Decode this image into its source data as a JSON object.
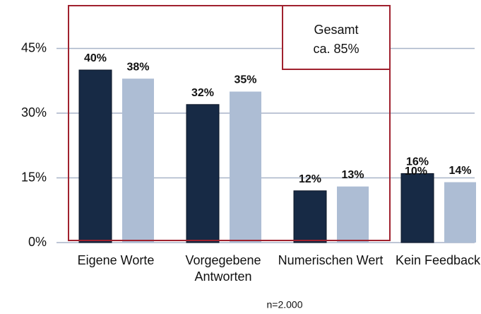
{
  "chart_data": {
    "type": "bar",
    "categories": [
      "Eigene Worte",
      "Vorgegebene Antworten",
      "Numerischen Wert",
      "Kein Feedback"
    ],
    "series": [
      {
        "color": "#172a45",
        "values": [
          40,
          32,
          12,
          16
        ],
        "value_labels": [
          "40%",
          "32%",
          "12%",
          "16%"
        ]
      },
      {
        "color": "#adbdd4",
        "values": [
          38,
          35,
          13,
          14
        ],
        "value_labels": [
          "38%",
          "35%",
          "13%",
          "14%"
        ]
      }
    ],
    "ylim": [
      0,
      55
    ],
    "yticks": [
      {
        "value": 0,
        "label": "0%"
      },
      {
        "value": 15,
        "label": "15%"
      },
      {
        "value": 30,
        "label": "30%"
      },
      {
        "value": 45,
        "label": "45%"
      }
    ],
    "grid": true,
    "annotations": {
      "box_title": "Gesamt",
      "box_value": "ca. 85%",
      "overlay": "10%",
      "note": "n=2.000"
    },
    "highlight_color": "#a0212e"
  }
}
